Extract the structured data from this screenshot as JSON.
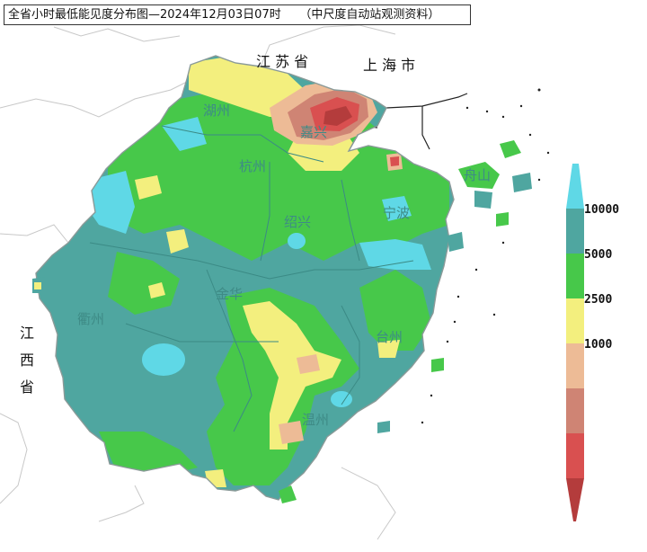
{
  "title": "全省小时最低能见度分布图—2024年12月03日07时",
  "source": "（中尺度自动站观测资料）",
  "neighbors": {
    "jiangsu": "江 苏 省",
    "shanghai": "上 海 市",
    "jiangxi": [
      "江",
      "西",
      "省"
    ]
  },
  "cities": [
    {
      "id": "huzhou",
      "label": "湖州"
    },
    {
      "id": "jiaxing",
      "label": "嘉兴"
    },
    {
      "id": "hangzhou",
      "label": "杭州"
    },
    {
      "id": "shaoxing",
      "label": "绍兴"
    },
    {
      "id": "ningbo",
      "label": "宁波"
    },
    {
      "id": "zhoushan",
      "label": "舟山"
    },
    {
      "id": "quzhou",
      "label": "衢州"
    },
    {
      "id": "jinhua",
      "label": "金华"
    },
    {
      "id": "taizhou",
      "label": "台州"
    },
    {
      "id": "wenzhou",
      "label": "温州"
    }
  ],
  "legend": {
    "labels": [
      "10000",
      "5000",
      "2500",
      "1000"
    ],
    "colors": {
      "gt10000": "#5fd8e6",
      "r5000_10000": "#4fa6a0",
      "r2500_5000": "#47c84a",
      "r1000_2500": "#f3ef7e",
      "r500_1000": "#edbb96",
      "r200_500": "#cf8474",
      "r50_200": "#d95050",
      "lt50": "#b43c3c"
    }
  }
}
